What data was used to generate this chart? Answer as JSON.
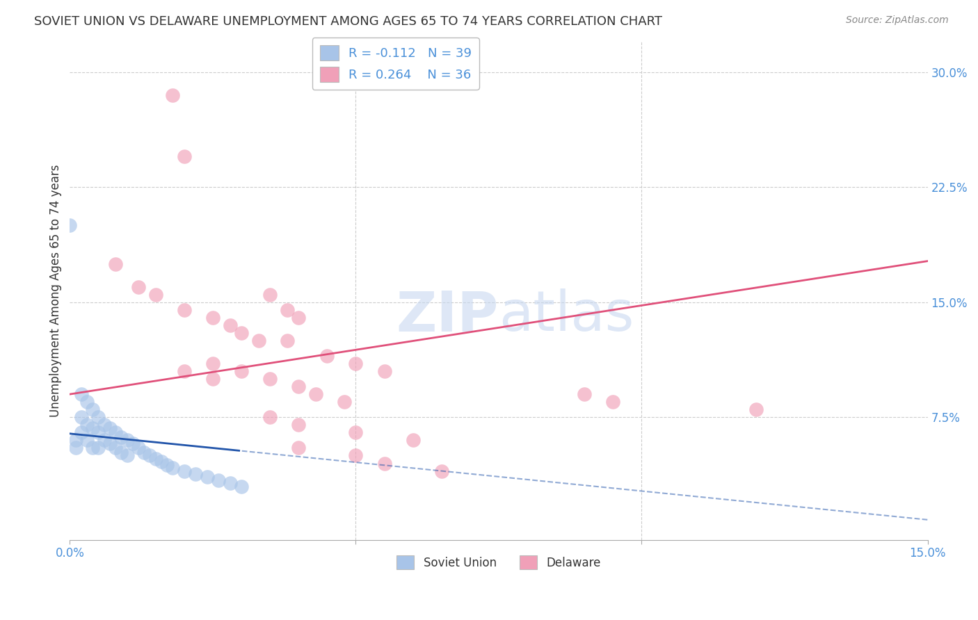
{
  "title": "SOVIET UNION VS DELAWARE UNEMPLOYMENT AMONG AGES 65 TO 74 YEARS CORRELATION CHART",
  "source": "Source: ZipAtlas.com",
  "ylabel": "Unemployment Among Ages 65 to 74 years",
  "xlim": [
    0.0,
    0.15
  ],
  "ylim": [
    -0.005,
    0.32
  ],
  "yticks": [
    0.0,
    0.075,
    0.15,
    0.225,
    0.3
  ],
  "xticks": [
    0.0,
    0.05,
    0.1,
    0.15
  ],
  "soviet_color": "#a8c4e8",
  "delaware_color": "#f0a0b8",
  "soviet_line_color": "#2255aa",
  "delaware_line_color": "#e0507a",
  "soviet_R": -0.112,
  "soviet_N": 39,
  "delaware_R": 0.264,
  "delaware_N": 36,
  "background_color": "#ffffff",
  "grid_color": "#cccccc",
  "watermark_color": "#c8d8f0",
  "tick_color": "#4a90d9",
  "title_color": "#333333",
  "source_color": "#888888",
  "ylabel_color": "#333333"
}
